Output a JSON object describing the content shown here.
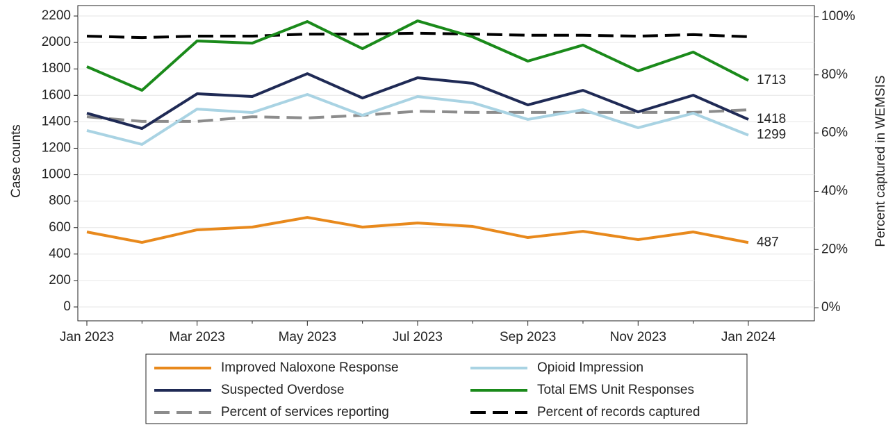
{
  "chart_data": {
    "type": "line",
    "categories": [
      "Jan 2023",
      null,
      "Mar 2023",
      null,
      "May 2023",
      null,
      "Jul 2023",
      null,
      "Sep 2023",
      null,
      "Nov 2023",
      null,
      "Jan 2024"
    ],
    "y_label": "Case counts",
    "y2_label": "Percent captured in WEMSIS",
    "ylim": [
      -105,
      2279
    ],
    "yticks": [
      0,
      200,
      400,
      600,
      800,
      1000,
      1200,
      1400,
      1600,
      1800,
      2000,
      2200
    ],
    "y2lim": [
      -4.5,
      103.8
    ],
    "y2ticks": [
      {
        "value": 0,
        "label": "0%"
      },
      {
        "value": 20,
        "label": "20%"
      },
      {
        "value": 40,
        "label": "40%"
      },
      {
        "value": 60,
        "label": "60%"
      },
      {
        "value": 80,
        "label": "80%"
      },
      {
        "value": 100,
        "label": "100%"
      }
    ],
    "grid": true,
    "series": [
      {
        "name": "Improved Naloxone Response",
        "color": "#e8891c",
        "dash": false,
        "values": [
          567,
          488,
          583,
          604,
          677,
          604,
          635,
          609,
          525,
          572,
          509,
          567,
          487
        ],
        "end_label": true
      },
      {
        "name": "Opioid Impression",
        "color": "#a9d3e3",
        "dash": false,
        "values": [
          1334,
          1229,
          1496,
          1470,
          1607,
          1449,
          1591,
          1544,
          1418,
          1491,
          1355,
          1465,
          1299
        ],
        "end_label": true
      },
      {
        "name": "Suspected Overdose",
        "color": "#1f2a55",
        "dash": false,
        "values": [
          1465,
          1349,
          1612,
          1591,
          1764,
          1580,
          1733,
          1691,
          1528,
          1638,
          1475,
          1601,
          1418
        ],
        "end_label": true
      },
      {
        "name": "Total EMS Unit Responses",
        "color": "#1a8a1a",
        "dash": false,
        "values": [
          1817,
          1638,
          2011,
          1995,
          2158,
          1953,
          2163,
          2042,
          1859,
          1980,
          1785,
          1927,
          1713
        ],
        "end_label": true
      },
      {
        "name": "Percent of services reporting",
        "color": "#8c8c8c",
        "dash": true,
        "axis": "y2",
        "values": [
          65.6,
          64.0,
          64.0,
          65.6,
          65.2,
          66.1,
          67.5,
          67.1,
          67.1,
          67.1,
          67.1,
          67.1,
          68.0
        ]
      },
      {
        "name": "Percent of records captured",
        "color": "#000000",
        "dash": true,
        "axis": "y2",
        "values": [
          93.3,
          92.8,
          93.3,
          93.3,
          94.0,
          94.0,
          94.3,
          94.0,
          93.6,
          93.6,
          93.3,
          93.8,
          93.1
        ]
      }
    ]
  }
}
